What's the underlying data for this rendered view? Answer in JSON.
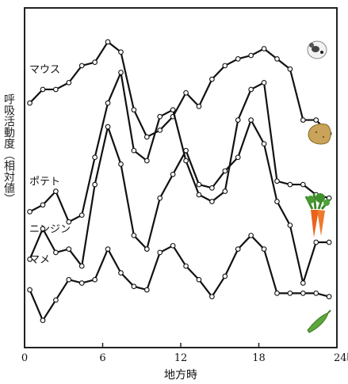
{
  "chart_data": {
    "type": "line",
    "xlabel": "地方時",
    "ylabel": "呼吸活動度（相対値）",
    "xlim": [
      0,
      24
    ],
    "x_ticks": [
      "0",
      "6",
      "12",
      "18",
      "24時"
    ],
    "grid": false,
    "x": [
      0,
      1,
      2,
      3,
      4,
      5,
      6,
      7,
      8,
      9,
      10,
      11,
      12,
      13,
      14,
      15,
      16,
      17,
      18,
      19,
      20,
      21,
      22,
      23
    ],
    "series": [
      {
        "name": "マウス",
        "icon": "mouse-icon",
        "values": [
          72,
          76,
          76,
          78,
          83,
          84,
          90,
          87,
          70,
          62,
          64,
          68,
          75,
          71,
          79,
          83,
          85,
          86,
          88,
          85,
          82,
          67,
          67,
          63
        ]
      },
      {
        "name": "ポテト",
        "icon": "potato-icon",
        "values": [
          40,
          42,
          46,
          37,
          39,
          56,
          72,
          81,
          58,
          55,
          68,
          70,
          55,
          45,
          43,
          46,
          67,
          76,
          78,
          49,
          48,
          48,
          45,
          44
        ]
      },
      {
        "name": "ニンジン",
        "icon": "carrot-icon",
        "values": [
          26,
          35,
          28,
          29,
          24,
          48,
          65,
          54,
          33,
          29,
          44,
          51,
          58,
          48,
          47,
          52,
          56,
          67,
          60,
          43,
          36,
          19,
          31,
          31
        ]
      },
      {
        "name": "マメ",
        "icon": "pea-pod-icon",
        "values": [
          17,
          8,
          14,
          20,
          19,
          20,
          29,
          22,
          18,
          17,
          28,
          30,
          24,
          20,
          15,
          21,
          29,
          33,
          29,
          16,
          16,
          16,
          16,
          15
        ]
      }
    ]
  }
}
